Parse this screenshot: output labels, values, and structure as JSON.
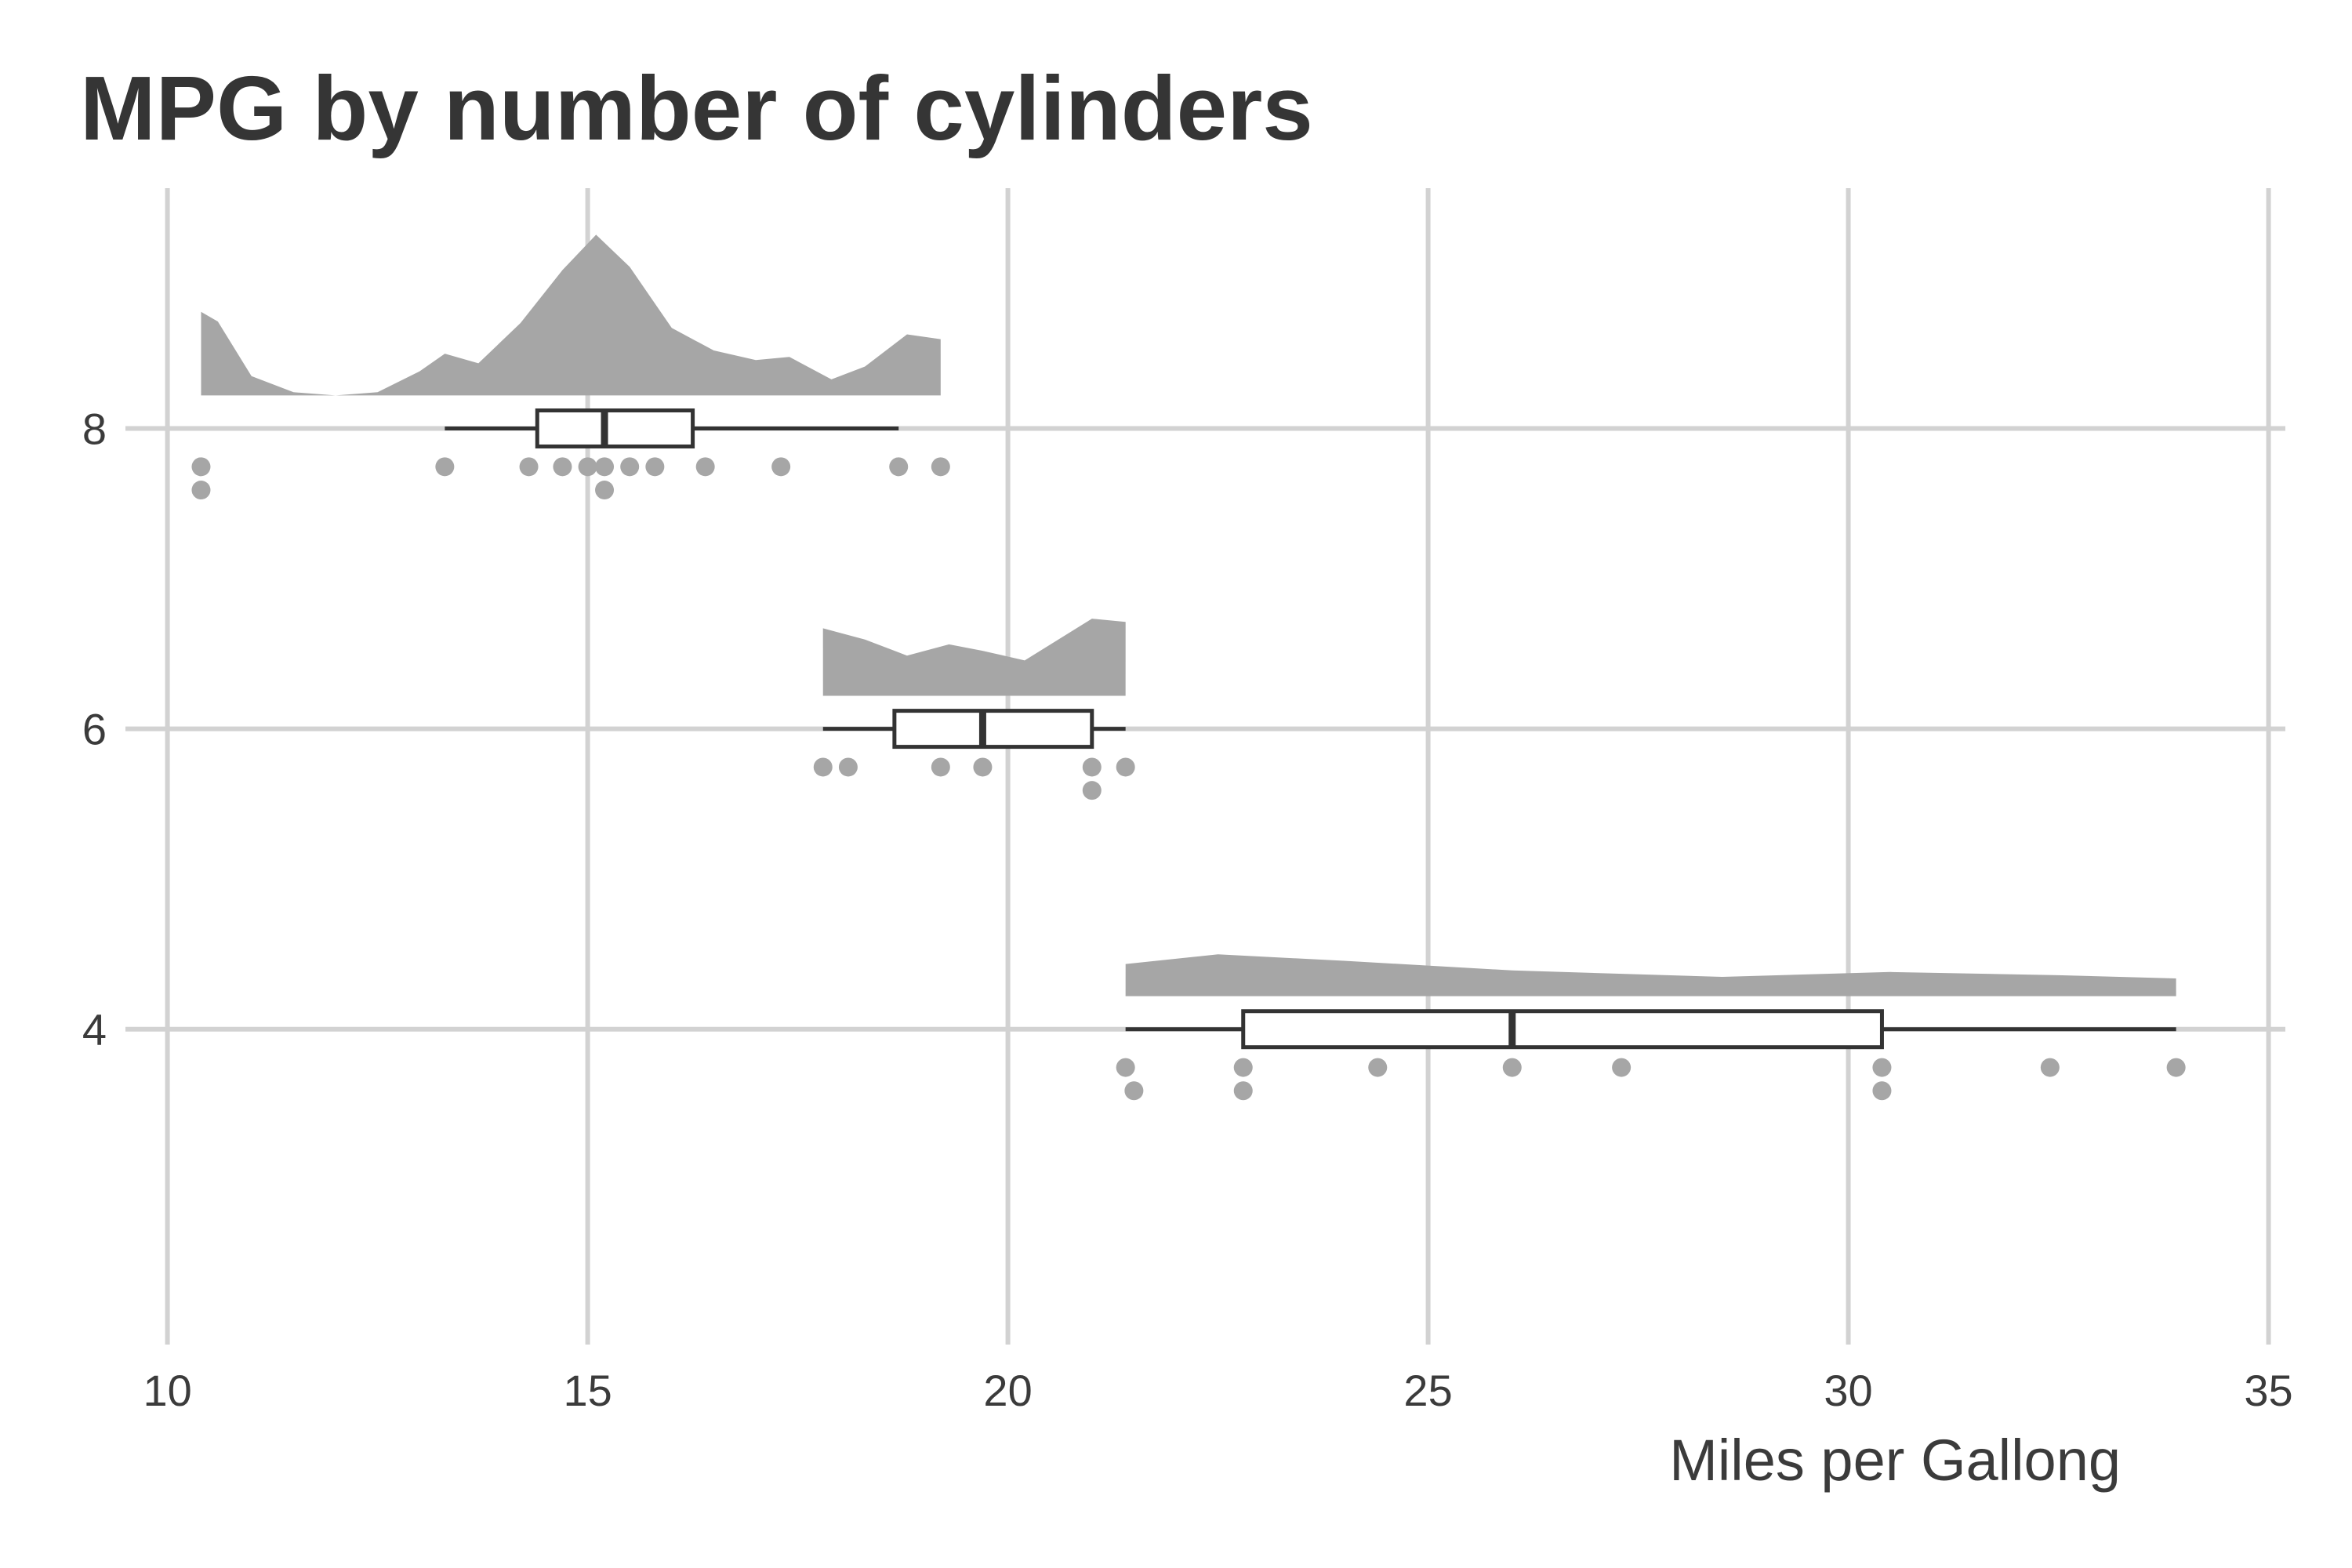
{
  "chart_data": {
    "type": "raincloud",
    "title": "MPG by number of cylinders",
    "xlabel": "Miles per Gallong",
    "ylabel": "",
    "xlim": [
      9.5,
      35.2
    ],
    "ylim": [
      1.9,
      9.6
    ],
    "x_ticks": [
      10,
      15,
      20,
      25,
      30,
      35
    ],
    "y_ticks": [
      4,
      6,
      8
    ],
    "grid": true,
    "legend": "none",
    "colors": {
      "fill": "#a6a6a6",
      "box_stroke": "#333333",
      "grid": "#d2d2d2",
      "text": "#353535"
    },
    "groups": [
      {
        "cyl": 8,
        "points": [
          10.4,
          10.4,
          13.3,
          14.3,
          14.7,
          15.0,
          15.2,
          15.2,
          15.5,
          15.8,
          16.4,
          17.3,
          18.7,
          19.2
        ],
        "box": {
          "min": 13.3,
          "q1": 14.4,
          "median": 15.2,
          "q3": 16.25,
          "max": 18.7
        },
        "density": [
          [
            10.4,
            0.52
          ],
          [
            10.6,
            0.46
          ],
          [
            11.0,
            0.12
          ],
          [
            11.5,
            0.02
          ],
          [
            12.0,
            0.0
          ],
          [
            12.5,
            0.02
          ],
          [
            13.0,
            0.15
          ],
          [
            13.3,
            0.26
          ],
          [
            13.7,
            0.2
          ],
          [
            14.2,
            0.45
          ],
          [
            14.7,
            0.78
          ],
          [
            15.1,
            1.0
          ],
          [
            15.5,
            0.8
          ],
          [
            16.0,
            0.42
          ],
          [
            16.5,
            0.28
          ],
          [
            17.0,
            0.22
          ],
          [
            17.4,
            0.24
          ],
          [
            17.9,
            0.1
          ],
          [
            18.3,
            0.18
          ],
          [
            18.8,
            0.38
          ],
          [
            19.2,
            0.35
          ]
        ]
      },
      {
        "cyl": 6,
        "points": [
          17.8,
          18.1,
          19.2,
          19.7,
          21.0,
          21.0,
          21.4
        ],
        "box": {
          "min": 17.8,
          "q1": 18.65,
          "median": 19.7,
          "q3": 21.0,
          "max": 21.4
        },
        "density": [
          [
            17.8,
            0.42
          ],
          [
            18.3,
            0.35
          ],
          [
            18.8,
            0.25
          ],
          [
            19.3,
            0.32
          ],
          [
            19.7,
            0.28
          ],
          [
            20.2,
            0.22
          ],
          [
            20.6,
            0.35
          ],
          [
            21.0,
            0.48
          ],
          [
            21.4,
            0.46
          ]
        ]
      },
      {
        "cyl": 4,
        "points": [
          21.4,
          21.5,
          22.8,
          22.8,
          24.4,
          26.0,
          27.3,
          30.4,
          30.4,
          32.4,
          33.9
        ],
        "box": {
          "min": 21.4,
          "q1": 22.8,
          "median": 26.0,
          "q3": 30.4,
          "max": 33.9
        },
        "density": [
          [
            21.4,
            0.2
          ],
          [
            22.5,
            0.26
          ],
          [
            24.0,
            0.22
          ],
          [
            26.0,
            0.16
          ],
          [
            28.5,
            0.12
          ],
          [
            30.5,
            0.15
          ],
          [
            32.5,
            0.13
          ],
          [
            33.9,
            0.11
          ]
        ]
      }
    ]
  }
}
